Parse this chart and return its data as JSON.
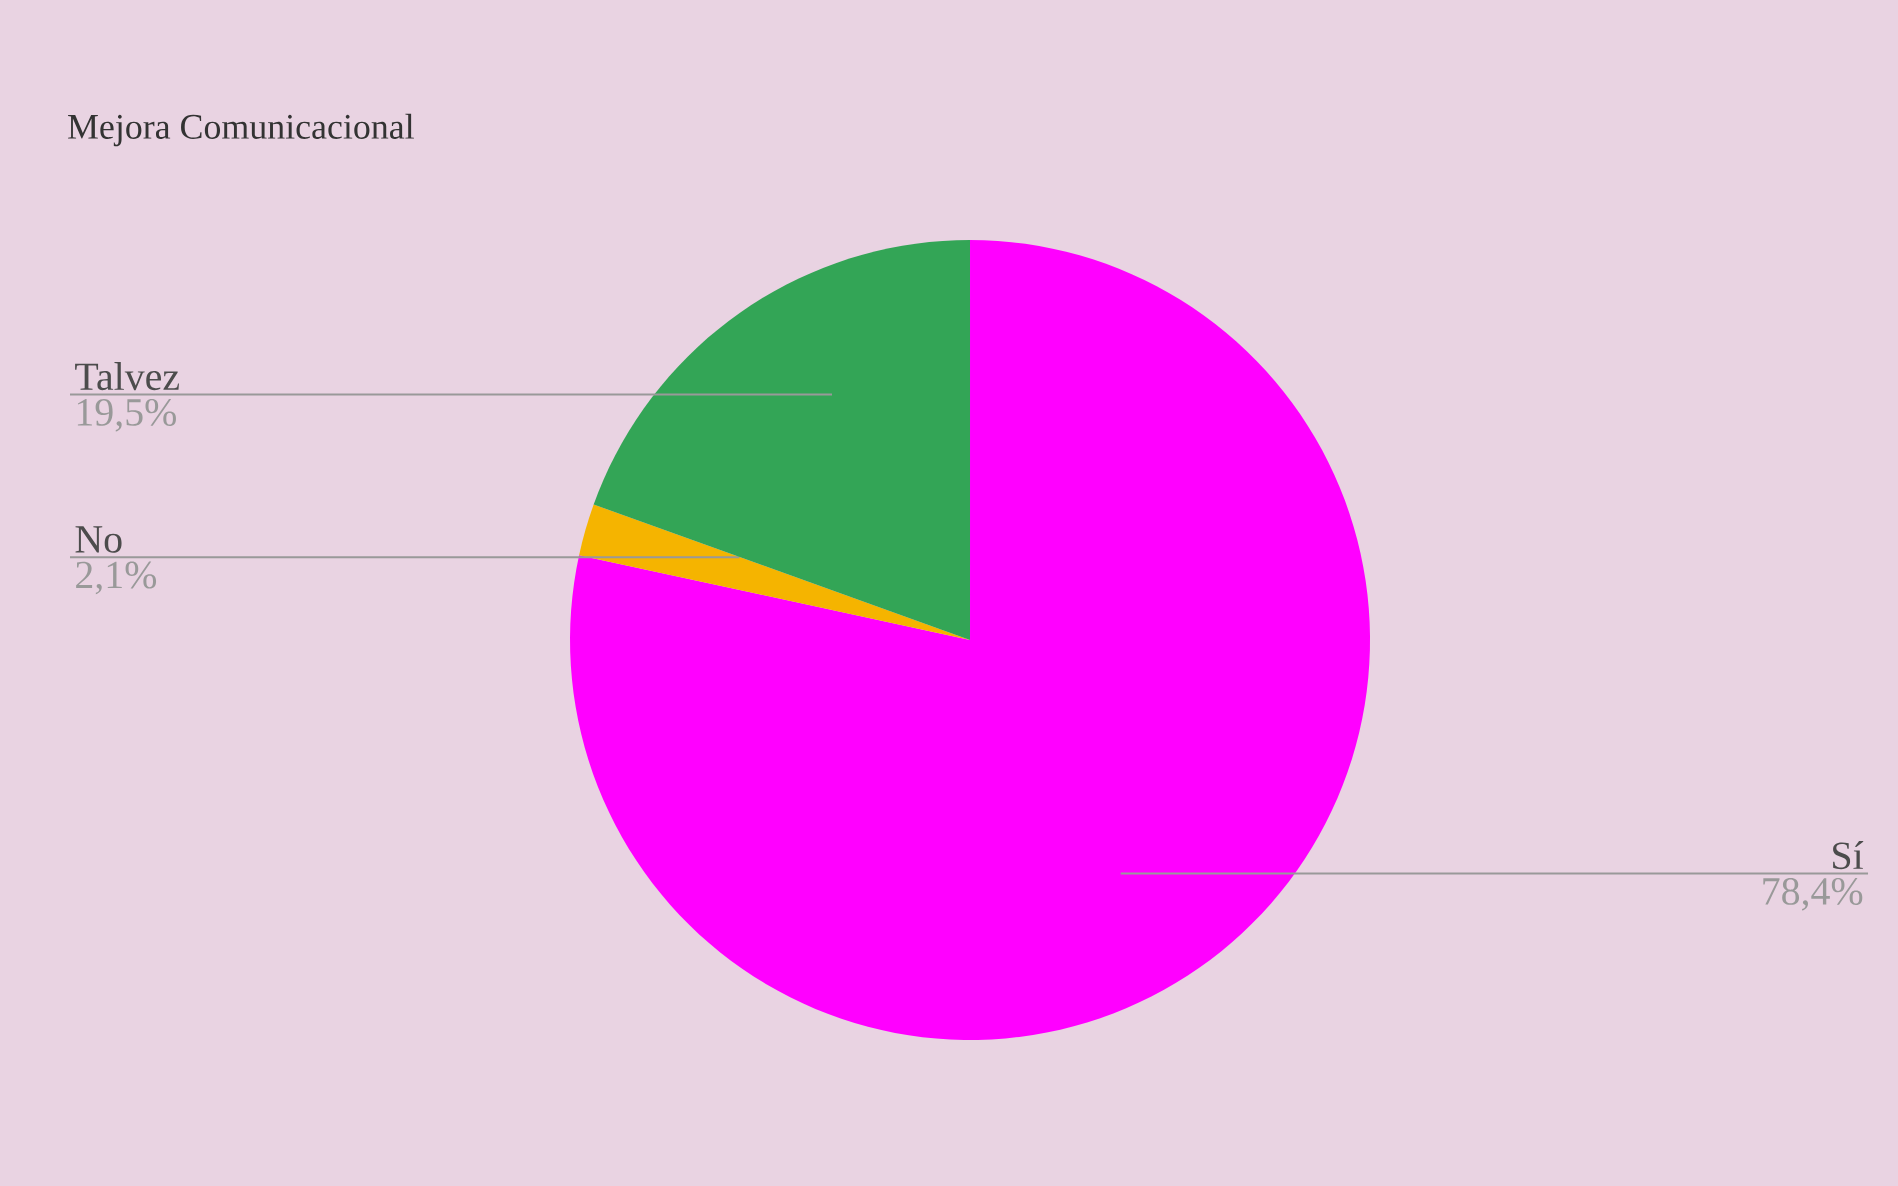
{
  "chart_data": {
    "type": "pie",
    "title": "Mejora Comunicacional",
    "categories": [
      "Sí",
      "No",
      "Talvez"
    ],
    "values": [
      78.4,
      2.1,
      19.5
    ],
    "colors": [
      "#ff00ff",
      "#f5b400",
      "#33a556"
    ],
    "value_labels": [
      "78,4%",
      "2,1%",
      "19,5%"
    ]
  }
}
